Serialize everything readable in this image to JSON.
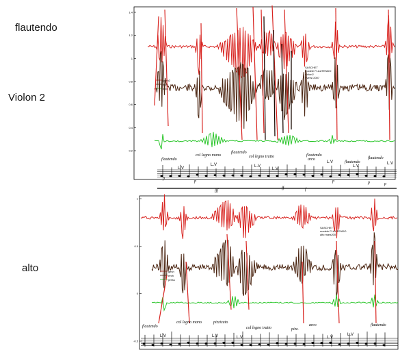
{
  "labels": {
    "flautendo": "flautendo",
    "violon2": "Violon 2",
    "alto": "alto"
  },
  "panel_top": {
    "y_ticks": [
      "1.4",
      "1.2",
      "1",
      "0.8",
      "0.6",
      "0.4",
      "0.2"
    ],
    "legend": [
      "gesh2",
      "enrh",
      "arco"
    ],
    "info_lines": [
      "SASCHET",
      "modele FLAUTENDO",
      "violon2",
      "Xversi 2007"
    ],
    "score_markings": [
      "flautendo",
      "col legno mano",
      "flautendo",
      "col legno tratto",
      "flautendo",
      "arco",
      "flautendo",
      "flautendo"
    ],
    "lv_marks": [
      "L.V",
      "L.V",
      "L.V",
      "L.V",
      "L.V",
      "L.V",
      "L.V"
    ],
    "dynamics": [
      "p",
      "p",
      "fff",
      "ff",
      "f",
      "p",
      "p",
      "p"
    ],
    "colors": {
      "red": "#d8231f",
      "brown": "#4a2410",
      "green": "#29c529"
    }
  },
  "panel_bottom": {
    "y_ticks": [
      "1",
      "0.5",
      "0",
      "-0.5"
    ],
    "legend": [
      "gesh",
      "enrh",
      "press"
    ],
    "info_lines": [
      "SASCHET",
      "modele FLAUTENDO",
      "alto mars2007"
    ],
    "score_markings": [
      "flautendo",
      "col legno mano",
      "pizzicato",
      "col legno tratto",
      "pizz.",
      "arco",
      "flautendo"
    ],
    "lv_marks": [
      "L.V",
      "L.V",
      "L.V",
      "L.V",
      "L.V"
    ],
    "colors": {
      "red": "#d8231f",
      "brown": "#4a2410",
      "green": "#29c529"
    }
  }
}
